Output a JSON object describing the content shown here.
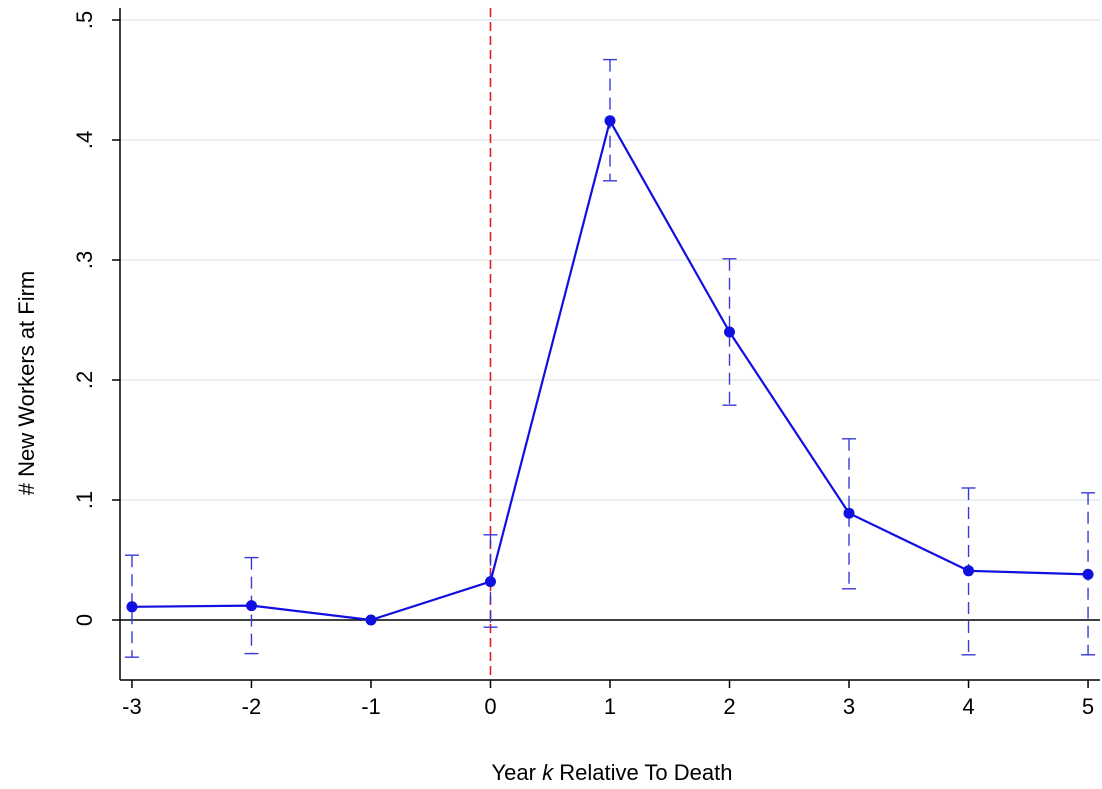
{
  "chart_data": {
    "type": "line",
    "xlabel_parts": [
      "Year ",
      "k",
      " Relative To Death"
    ],
    "ylabel": "# New Workers at Firm",
    "x": [
      -3,
      -2,
      -1,
      0,
      1,
      2,
      3,
      4,
      5
    ],
    "xticks": [
      "-3",
      "-2",
      "-1",
      "0",
      "1",
      "2",
      "3",
      "4",
      "5"
    ],
    "yticks": [
      "0",
      ".1",
      ".2",
      ".3",
      ".4",
      ".5"
    ],
    "ytick_values": [
      0,
      0.1,
      0.2,
      0.3,
      0.4,
      0.5
    ],
    "xlim": [
      -3.1,
      5.1
    ],
    "ylim": [
      -0.05,
      0.51
    ],
    "grid": true,
    "reference_line_x": 0,
    "series": [
      {
        "values": [
          0.011,
          0.012,
          0.0,
          0.032,
          0.416,
          0.24,
          0.089,
          0.041,
          0.038
        ],
        "ci_low": [
          -0.031,
          -0.028,
          null,
          -0.006,
          0.366,
          0.179,
          0.026,
          -0.029,
          -0.029
        ],
        "ci_high": [
          0.054,
          0.052,
          null,
          0.071,
          0.467,
          0.301,
          0.151,
          0.11,
          0.106
        ]
      }
    ],
    "colors": {
      "series": "#1010e0",
      "ci": "#3a3ad8",
      "reference_line": "#e02020",
      "grid": "#e4ecec",
      "zero_line": "#000000"
    }
  }
}
